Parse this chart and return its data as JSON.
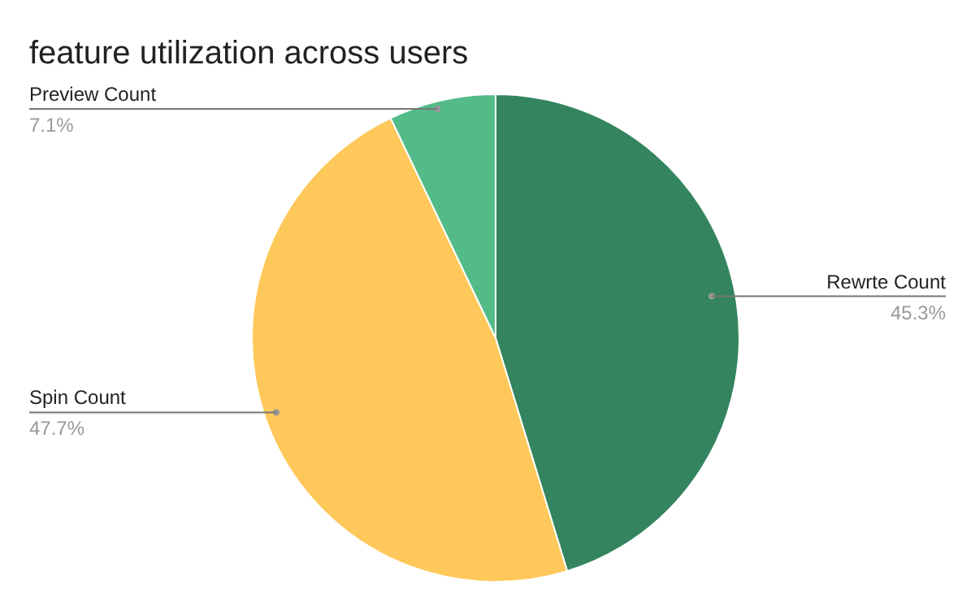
{
  "chart_data": {
    "type": "pie",
    "title": "feature utilization across users",
    "categories": [
      "Rewrte Count",
      "Spin Count",
      "Preview Count"
    ],
    "values": [
      45.3,
      47.7,
      7.1
    ],
    "colors": [
      "#34855f",
      "#ffc85a",
      "#52bb88"
    ],
    "value_labels": [
      "45.3%",
      "47.7%",
      "7.1%"
    ],
    "legend": false
  }
}
